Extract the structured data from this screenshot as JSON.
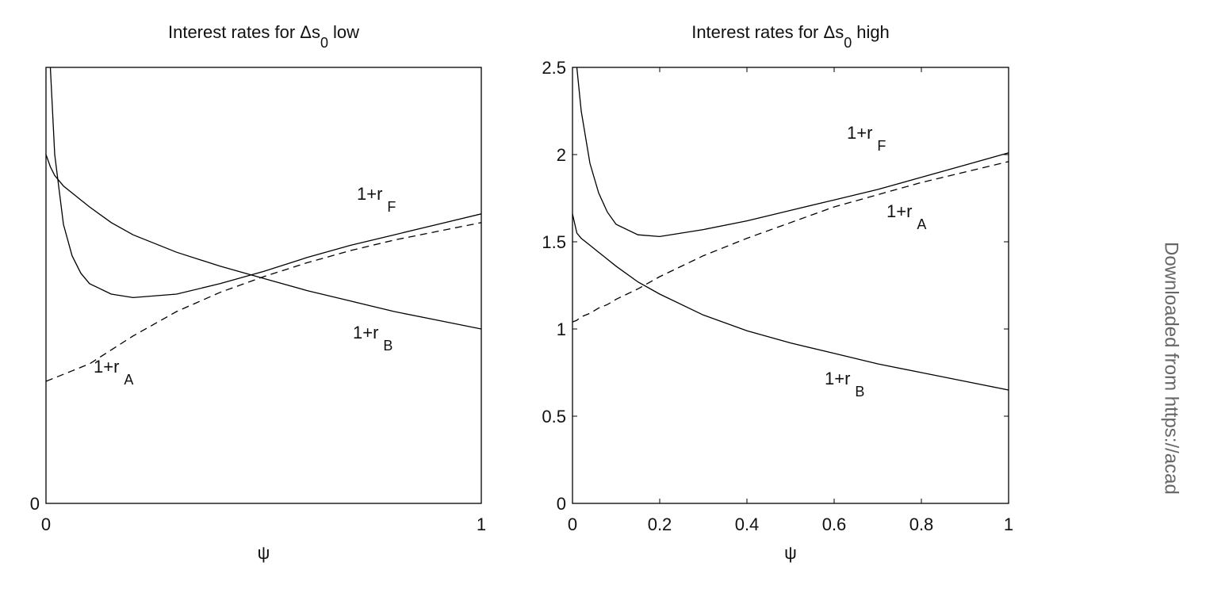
{
  "chart_data": [
    {
      "type": "line",
      "title": "Interest rates for Δs",
      "title_sub": "0",
      "title_suffix": "low",
      "xlabel": "ψ",
      "x": [
        0,
        0.01,
        0.02,
        0.04,
        0.06,
        0.08,
        0.1,
        0.15,
        0.2,
        0.3,
        0.4,
        0.5,
        0.6,
        0.7,
        0.8,
        0.9,
        1
      ],
      "xlim": [
        0,
        1
      ],
      "xticks": [
        0,
        1
      ],
      "ylim": [
        0,
        2.5
      ],
      "yticks": [
        0
      ],
      "series": [
        {
          "name": "1+r",
          "name_sub": "F",
          "color": "#000000",
          "dashed": false,
          "values": [
            null,
            2.5,
            2.0,
            1.6,
            1.42,
            1.32,
            1.26,
            1.2,
            1.18,
            1.2,
            1.26,
            1.33,
            1.41,
            1.48,
            1.54,
            1.6,
            1.66
          ]
        },
        {
          "name": "1+r",
          "name_sub": "B",
          "color": "#000000",
          "dashed": false,
          "values": [
            2.0,
            1.93,
            1.88,
            1.82,
            1.78,
            1.74,
            1.7,
            1.61,
            1.54,
            1.44,
            1.36,
            1.29,
            1.22,
            1.16,
            1.1,
            1.05,
            1.0
          ]
        },
        {
          "name": "1+r",
          "name_sub": "A",
          "color": "#000000",
          "dashed": true,
          "values": [
            0.7,
            0.71,
            0.72,
            0.74,
            0.76,
            0.78,
            0.8,
            0.88,
            0.96,
            1.1,
            1.21,
            1.3,
            1.38,
            1.45,
            1.51,
            1.56,
            1.61
          ]
        }
      ]
    },
    {
      "type": "line",
      "title": "Interest rates for Δs",
      "title_sub": "0",
      "title_suffix": "high",
      "xlabel": "ψ",
      "x": [
        0,
        0.01,
        0.02,
        0.04,
        0.06,
        0.08,
        0.1,
        0.15,
        0.2,
        0.3,
        0.4,
        0.5,
        0.6,
        0.7,
        0.8,
        0.9,
        1
      ],
      "xlim": [
        0,
        1
      ],
      "xticks": [
        0,
        0.2,
        0.4,
        0.6,
        0.8,
        1
      ],
      "ylim": [
        0,
        2.5
      ],
      "yticks": [
        0,
        0.5,
        1,
        1.5,
        2,
        2.5
      ],
      "series": [
        {
          "name": "1+r",
          "name_sub": "F",
          "color": "#000000",
          "dashed": false,
          "values": [
            null,
            2.5,
            2.25,
            1.95,
            1.78,
            1.67,
            1.6,
            1.54,
            1.53,
            1.57,
            1.62,
            1.68,
            1.74,
            1.8,
            1.87,
            1.94,
            2.01
          ]
        },
        {
          "name": "1+r",
          "name_sub": "A",
          "color": "#000000",
          "dashed": true,
          "values": [
            1.04,
            1.05,
            1.07,
            1.09,
            1.12,
            1.14,
            1.17,
            1.23,
            1.3,
            1.42,
            1.52,
            1.61,
            1.7,
            1.77,
            1.84,
            1.9,
            1.96
          ]
        },
        {
          "name": "1+r",
          "name_sub": "B",
          "color": "#000000",
          "dashed": false,
          "values": [
            1.66,
            1.55,
            1.52,
            1.48,
            1.44,
            1.4,
            1.36,
            1.27,
            1.2,
            1.08,
            0.99,
            0.92,
            0.86,
            0.8,
            0.75,
            0.7,
            0.65
          ]
        }
      ]
    }
  ],
  "watermark": "Downloaded from https://acad"
}
